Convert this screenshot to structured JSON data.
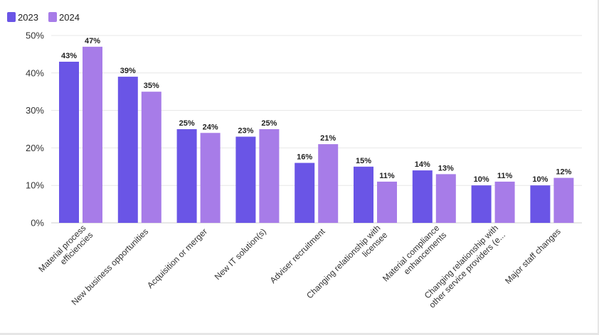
{
  "chart_data": {
    "type": "bar",
    "categories": [
      [
        "Material process",
        "efficiencies"
      ],
      [
        "New business opportunities"
      ],
      [
        "Acquisition or merger"
      ],
      [
        "New IT solution(s)"
      ],
      [
        "Adviser recruitment"
      ],
      [
        "Changing relationship with",
        "licensee"
      ],
      [
        "Material compliance",
        "enhancements"
      ],
      [
        "Changing relationship with",
        "other service providers (e..."
      ],
      [
        "Major staff changes"
      ]
    ],
    "series": [
      {
        "name": "2023",
        "color": "#6a55e6",
        "values": [
          43,
          39,
          25,
          23,
          16,
          15,
          14,
          10,
          10
        ]
      },
      {
        "name": "2024",
        "color": "#a77ce8",
        "values": [
          47,
          35,
          24,
          25,
          21,
          11,
          13,
          11,
          12
        ]
      }
    ],
    "ylim": [
      0,
      50
    ],
    "yticks": [
      0,
      10,
      20,
      30,
      40,
      50
    ],
    "value_suffix": "%",
    "grid": true,
    "legend_position": "top-left"
  }
}
